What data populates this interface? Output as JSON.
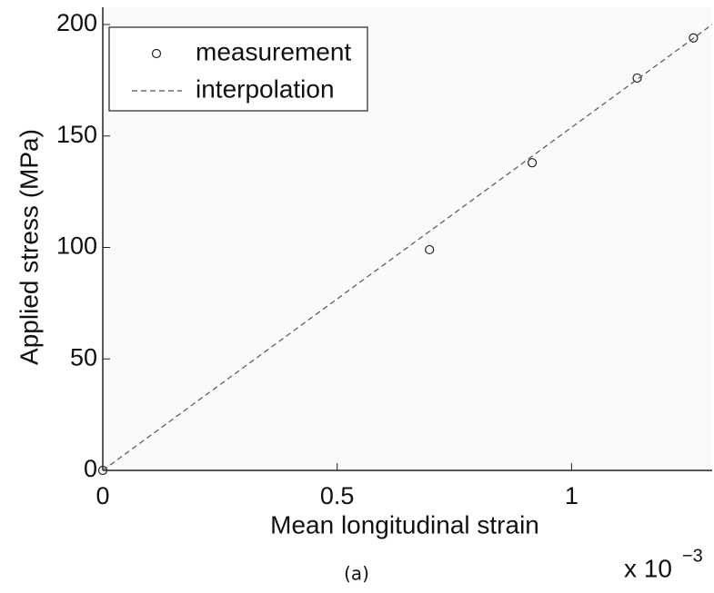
{
  "chart_data": {
    "type": "line",
    "xlabel": "Mean longitudinal strain",
    "ylabel": "Applied stress (MPa)",
    "x_multiplier": "x 10",
    "x_multiplier_exponent": "−3",
    "caption": "(a)",
    "xlim": [
      0,
      1.3
    ],
    "ylim": [
      0,
      200
    ],
    "xticks": [
      0,
      0.5,
      1
    ],
    "yticks": [
      0,
      50,
      100,
      150,
      200
    ],
    "legend": "upper left",
    "series": [
      {
        "name": "measurement",
        "style": "marker",
        "color": "#222222",
        "x": [
          0,
          0.697,
          0.916,
          1.14,
          1.26
        ],
        "values": [
          0,
          99,
          138,
          176,
          194
        ]
      },
      {
        "name": "interpolation",
        "style": "dashed",
        "color": "#555555",
        "x": [
          0,
          1.3
        ],
        "values": [
          0,
          200
        ]
      }
    ]
  }
}
